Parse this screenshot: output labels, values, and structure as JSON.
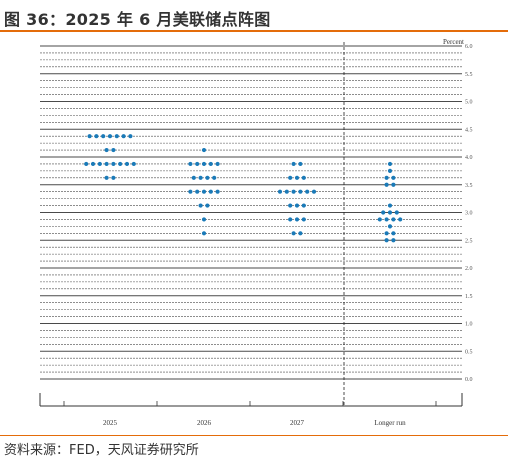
{
  "page": {
    "title": "图 36：2025 年 6 月美联储点阵图",
    "source": "资料来源：FED，天风证券研究所"
  },
  "colors": {
    "accent": "#e46c0a",
    "dot": "#1a7ab8",
    "grid": "#4a4a4a"
  },
  "chart_data": {
    "type": "scatter",
    "ylabel": "Percent",
    "ylim": [
      0,
      6.0
    ],
    "yticks": [
      "0.0",
      "0.5",
      "1.0",
      "1.5",
      "2.0",
      "2.5",
      "3.0",
      "3.5",
      "4.0",
      "4.5",
      "5.0",
      "5.5",
      "6.0"
    ],
    "grid": "horizontal every 0.125",
    "categories": [
      "2025",
      "2026",
      "2027",
      "Longer run"
    ],
    "dots": [
      {
        "category": "2025",
        "rows": [
          {
            "y": 4.375,
            "count": 7
          },
          {
            "y": 4.125,
            "count": 2
          },
          {
            "y": 3.875,
            "count": 8
          },
          {
            "y": 3.625,
            "count": 2
          }
        ]
      },
      {
        "category": "2026",
        "rows": [
          {
            "y": 4.125,
            "count": 1
          },
          {
            "y": 3.875,
            "count": 5
          },
          {
            "y": 3.625,
            "count": 4
          },
          {
            "y": 3.375,
            "count": 5
          },
          {
            "y": 3.125,
            "count": 2
          },
          {
            "y": 2.875,
            "count": 1
          },
          {
            "y": 2.625,
            "count": 1
          }
        ]
      },
      {
        "category": "2027",
        "rows": [
          {
            "y": 3.875,
            "count": 2
          },
          {
            "y": 3.625,
            "count": 3
          },
          {
            "y": 3.375,
            "count": 6
          },
          {
            "y": 3.125,
            "count": 3
          },
          {
            "y": 2.875,
            "count": 3
          },
          {
            "y": 2.625,
            "count": 2
          }
        ]
      },
      {
        "category": "Longer run",
        "rows": [
          {
            "y": 3.875,
            "count": 1
          },
          {
            "y": 3.75,
            "count": 1
          },
          {
            "y": 3.625,
            "count": 2
          },
          {
            "y": 3.5,
            "count": 2
          },
          {
            "y": 3.125,
            "count": 1
          },
          {
            "y": 3.0,
            "count": 3
          },
          {
            "y": 2.875,
            "count": 4
          },
          {
            "y": 2.75,
            "count": 1
          },
          {
            "y": 2.625,
            "count": 2
          },
          {
            "y": 2.5,
            "count": 2
          }
        ]
      }
    ]
  }
}
